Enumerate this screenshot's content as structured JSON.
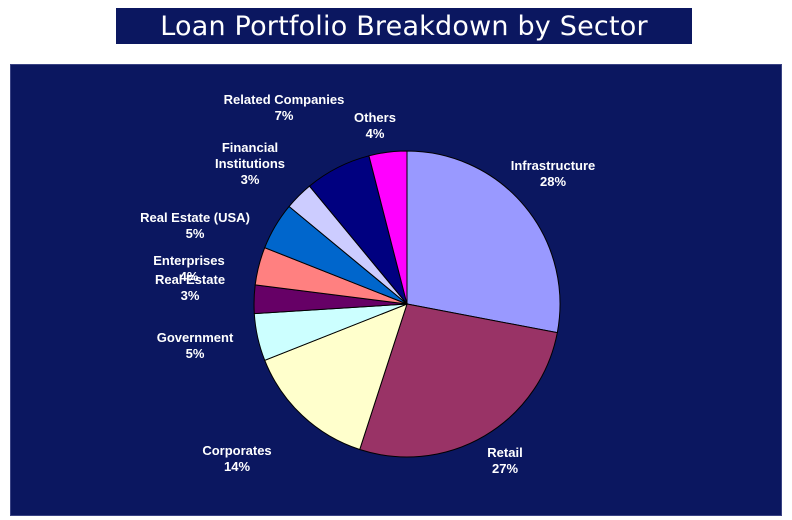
{
  "title": "Loan Portfolio Breakdown by Sector",
  "colors": {
    "header_bg": "#0b1760",
    "panel_bg": "#0b1760",
    "label_text": "#ffffff"
  },
  "chart_data": {
    "type": "pie",
    "title": "Loan Portfolio Breakdown by Sector",
    "start_angle_deg": 0,
    "direction": "clockwise",
    "slices": [
      {
        "label": "Infrastructure",
        "value": 28,
        "value_label": "28%",
        "color": "#9999ff"
      },
      {
        "label": "Retail",
        "value": 27,
        "value_label": "27%",
        "color": "#993366"
      },
      {
        "label": "Corporates",
        "value": 14,
        "value_label": "14%",
        "color": "#ffffcc"
      },
      {
        "label": "Government",
        "value": 5,
        "value_label": "5%",
        "color": "#ccffff"
      },
      {
        "label": "Real Estate",
        "value": 3,
        "value_label": "3%",
        "color": "#660066"
      },
      {
        "label": "Enterprises",
        "value": 4,
        "value_label": "4%",
        "color": "#ff8080"
      },
      {
        "label": "Real Estate (USA)",
        "value": 5,
        "value_label": "5%",
        "color": "#0066cc"
      },
      {
        "label": "Financial Institutions",
        "value": 3,
        "value_label": "3%",
        "color": "#ccccff"
      },
      {
        "label": "Related Companies",
        "value": 7,
        "value_label": "7%",
        "color": "#000080"
      },
      {
        "label": "Others",
        "value": 4,
        "value_label": "4%",
        "color": "#ff00ff"
      }
    ]
  }
}
